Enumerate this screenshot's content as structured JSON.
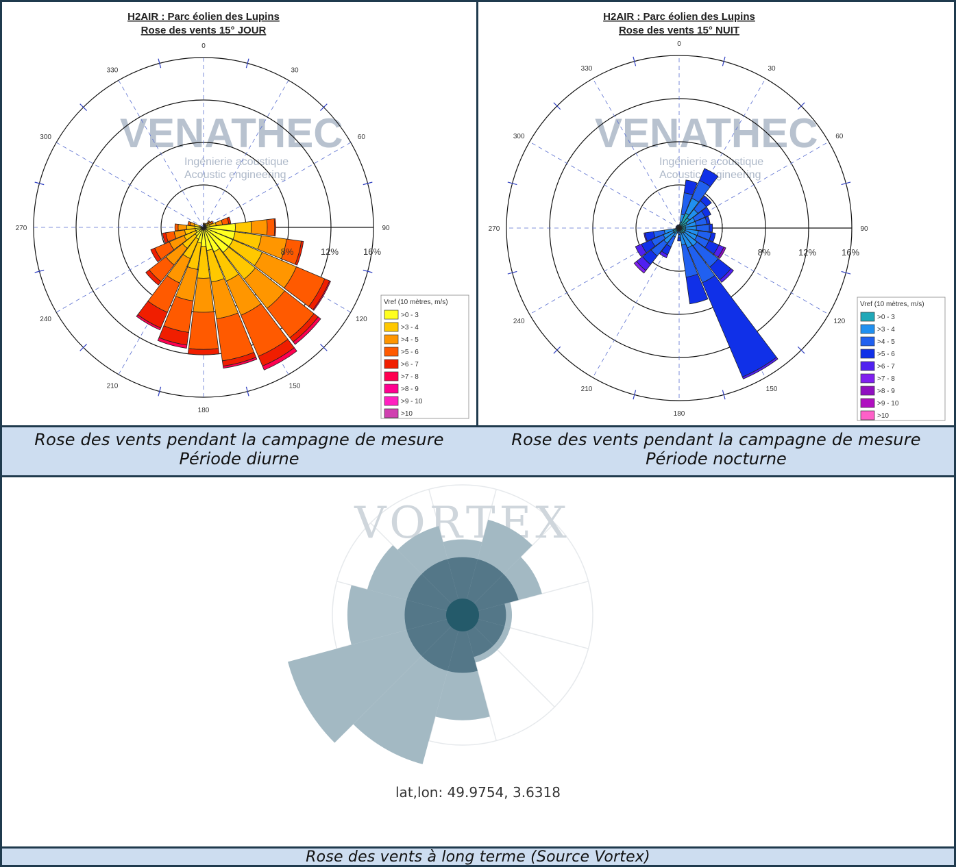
{
  "panels": [
    {
      "title": "H2AIR : Parc éolien des Lupins",
      "subtitle": "Rose des vents 15° JOUR",
      "watermark": "VENATHEC",
      "watermark_line1": "Ingénierie acoustique",
      "watermark_line2": "Acoustic engineering",
      "legend_title": "Vref (10 mètres, m/s)",
      "caption_line1": "Rose des vents pendant la campagne de mesure",
      "caption_line2": "Période diurne"
    },
    {
      "title": "H2AIR : Parc éolien des Lupins",
      "subtitle": "Rose des vents 15° NUIT",
      "watermark": "VENATHEC",
      "watermark_line1": "Ingénierie acoustique",
      "watermark_line2": "Acoustic engineering",
      "legend_title": "Vref (10 mètres, m/s)",
      "caption_line1": "Rose des vents pendant la campagne de mesure",
      "caption_line2": "Période nocturne"
    }
  ],
  "vortex": {
    "watermark": "VORTEX",
    "coords": "lat,lon: 49.9754, 3.6318",
    "caption": "Rose des vents à long terme (Source Vortex)"
  },
  "chart_data": [
    {
      "type": "polar-stacked-bar",
      "title": "H2AIR : Parc éolien des Lupins",
      "subtitle": "Rose des vents 15° JOUR",
      "angle_labels": [
        "0",
        "30",
        "60",
        "90",
        "120",
        "150",
        "180",
        "210",
        "240",
        "270",
        "300",
        "330"
      ],
      "radial_ticks": [
        "8%",
        "12%",
        "16%"
      ],
      "rlim": [
        0,
        16
      ],
      "legend_title": "Vref (10 mètres, m/s)",
      "bins": [
        ">0 - 3",
        ">3 - 4",
        ">4 - 5",
        ">5 - 6",
        ">6 - 7",
        ">7 - 8",
        ">8 - 9",
        ">9 - 10",
        ">10"
      ],
      "colors": [
        "#ffff20",
        "#ffc800",
        "#ff9600",
        "#ff5a00",
        "#f01e00",
        "#ff0050",
        "#ff0090",
        "#ff20c0",
        "#d040b0"
      ],
      "directions": [
        0,
        15,
        30,
        45,
        60,
        75,
        90,
        105,
        120,
        135,
        150,
        165,
        180,
        195,
        210,
        225,
        240,
        255,
        270,
        285
      ],
      "values": [
        [
          0.2,
          0.1,
          0.1,
          0,
          0,
          0,
          0,
          0,
          0
        ],
        [
          0.2,
          0.1,
          0.1,
          0,
          0,
          0,
          0,
          0,
          0
        ],
        [
          0.2,
          0.1,
          0.1,
          0,
          0,
          0,
          0,
          0,
          0
        ],
        [
          0.3,
          0.2,
          0.2,
          0.1,
          0,
          0,
          0,
          0,
          0
        ],
        [
          0.3,
          0.3,
          0.2,
          0.2,
          0,
          0,
          0,
          0,
          0
        ],
        [
          0.6,
          0.6,
          0.6,
          0.6,
          0.2,
          0,
          0,
          0,
          0
        ],
        [
          3.0,
          1.5,
          1.5,
          0.7,
          0.1,
          0,
          0,
          0,
          0
        ],
        [
          3.0,
          2.5,
          2.4,
          1.4,
          0.2,
          0,
          0,
          0,
          0
        ],
        [
          3.0,
          3.0,
          3.5,
          2.9,
          0.5,
          0.1,
          0,
          0,
          0
        ],
        [
          3.0,
          3.2,
          3.5,
          3.5,
          0.5,
          0.3,
          0,
          0,
          0
        ],
        [
          2.5,
          3.0,
          3.5,
          4.2,
          1.0,
          0.4,
          0,
          0,
          0
        ],
        [
          2.2,
          3.0,
          3.5,
          4.0,
          0.5,
          0.2,
          0,
          0,
          0
        ],
        [
          1.8,
          3.0,
          3.2,
          3.5,
          0.5,
          0,
          0,
          0,
          0
        ],
        [
          1.5,
          2.5,
          3.0,
          3.0,
          1.2,
          0.3,
          0,
          0,
          0
        ],
        [
          1.2,
          2.0,
          2.5,
          3.0,
          1.6,
          0.2,
          0,
          0,
          0
        ],
        [
          1.0,
          1.5,
          2.0,
          2.0,
          0.4,
          0,
          0,
          0,
          0
        ],
        [
          0.8,
          1.2,
          1.5,
          1.5,
          0.4,
          0,
          0,
          0,
          0
        ],
        [
          0.8,
          1.0,
          1.0,
          0.8,
          0.3,
          0,
          0,
          0,
          0
        ],
        [
          0.8,
          0.8,
          0.8,
          0.3,
          0,
          0,
          0,
          0,
          0
        ],
        [
          0.4,
          0.5,
          0.4,
          0.2,
          0,
          0,
          0,
          0,
          0
        ]
      ]
    },
    {
      "type": "polar-stacked-bar",
      "title": "H2AIR : Parc éolien des Lupins",
      "subtitle": "Rose des vents 15° NUIT",
      "angle_labels": [
        "0",
        "30",
        "60",
        "90",
        "120",
        "150",
        "180",
        "210",
        "240",
        "270",
        "300",
        "330"
      ],
      "radial_ticks": [
        "8%",
        "12%",
        "16%"
      ],
      "rlim": [
        0,
        16
      ],
      "legend_title": "Vref (10 mètres, m/s)",
      "bins": [
        ">0 - 3",
        ">3 - 4",
        ">4 - 5",
        ">5 - 6",
        ">6 - 7",
        ">7 - 8",
        ">8 - 9",
        ">9 - 10",
        ">10"
      ],
      "colors": [
        "#20a8b8",
        "#2090f0",
        "#2060f0",
        "#1030e8",
        "#5020f0",
        "#8020f0",
        "#9010c0",
        "#b010c0",
        "#ff60c8"
      ],
      "directions": [
        0,
        15,
        30,
        45,
        60,
        75,
        90,
        105,
        120,
        135,
        150,
        165,
        180,
        195,
        210,
        225,
        240,
        255,
        270,
        285,
        300,
        315,
        330,
        345
      ],
      "values": [
        [
          0.1,
          0.1,
          0.1,
          0,
          0,
          0,
          0,
          0,
          0
        ],
        [
          0.5,
          0.8,
          2.0,
          1.2,
          0,
          0,
          0,
          0,
          0
        ],
        [
          1.5,
          1.5,
          1.8,
          1.2,
          0,
          0,
          0,
          0,
          0
        ],
        [
          1.2,
          1.0,
          1.0,
          0.6,
          0,
          0,
          0,
          0,
          0
        ],
        [
          0.8,
          0.8,
          1.0,
          0.6,
          0,
          0,
          0,
          0,
          0
        ],
        [
          0.6,
          1.0,
          1.0,
          0.3,
          0,
          0,
          0,
          0,
          0
        ],
        [
          0.6,
          1.0,
          1.2,
          0.3,
          0,
          0,
          0,
          0,
          0
        ],
        [
          0.6,
          1.2,
          1.2,
          0.4,
          0,
          0,
          0,
          0,
          0
        ],
        [
          0.6,
          1.2,
          1.2,
          1.0,
          0.5,
          0,
          0.2,
          0,
          0
        ],
        [
          0.6,
          1.5,
          2.5,
          1.5,
          0.3,
          0,
          0,
          0,
          0
        ],
        [
          0.5,
          1.5,
          3.5,
          9.5,
          0.2,
          0,
          0,
          0,
          0
        ],
        [
          0.4,
          1.2,
          3.0,
          2.5,
          0,
          0,
          0,
          0,
          0
        ],
        [
          0.2,
          0.4,
          0.3,
          0.3,
          0,
          0,
          0,
          0,
          0
        ],
        [
          0.1,
          0.2,
          0.2,
          0,
          0,
          0,
          0,
          0,
          0
        ],
        [
          0.3,
          0.6,
          1.0,
          0.8,
          0.3,
          0,
          0,
          0,
          0
        ],
        [
          0.6,
          1.2,
          1.5,
          1.0,
          0.7,
          0.3,
          0,
          0,
          0
        ],
        [
          0.6,
          1.0,
          1.2,
          1.0,
          0.6,
          0,
          0,
          0,
          0
        ],
        [
          0.5,
          0.9,
          1.0,
          0.8,
          0.1,
          0,
          0,
          0,
          0
        ],
        [
          0.1,
          0.1,
          0.1,
          0,
          0,
          0,
          0,
          0,
          0
        ],
        [
          0.1,
          0.1,
          0.1,
          0,
          0,
          0,
          0,
          0,
          0
        ],
        [
          0.1,
          0.1,
          0.1,
          0,
          0,
          0,
          0,
          0,
          0
        ],
        [
          0.1,
          0.1,
          0.1,
          0,
          0,
          0,
          0,
          0,
          0
        ],
        [
          0.1,
          0.1,
          0.1,
          0,
          0,
          0,
          0,
          0,
          0
        ],
        [
          0.1,
          0.1,
          0.1,
          0,
          0,
          0,
          0,
          0,
          0
        ]
      ]
    },
    {
      "type": "polar-bar",
      "title": "",
      "sectors": 12,
      "ring_colors": [
        "#245a6a",
        "#547788",
        "#a3b9c3"
      ],
      "directions": [
        0,
        30,
        60,
        90,
        120,
        150,
        180,
        210,
        240,
        270,
        300,
        330
      ],
      "ring_levels": [
        [
          1.0,
          2.0,
          2.3
        ],
        [
          1.0,
          2.0,
          3.0
        ],
        [
          1.0,
          2.0,
          2.5
        ],
        [
          1.0,
          2.0,
          1.5
        ],
        [
          1.0,
          2.0,
          1.5
        ],
        [
          1.0,
          2.0,
          1.5
        ],
        [
          1.0,
          2.0,
          3.2
        ],
        [
          1.0,
          2.0,
          4.7
        ],
        [
          1.0,
          2.0,
          5.5
        ],
        [
          1.0,
          2.0,
          3.5
        ],
        [
          1.0,
          2.0,
          3.0
        ],
        [
          1.0,
          2.0,
          2.8
        ]
      ]
    }
  ]
}
